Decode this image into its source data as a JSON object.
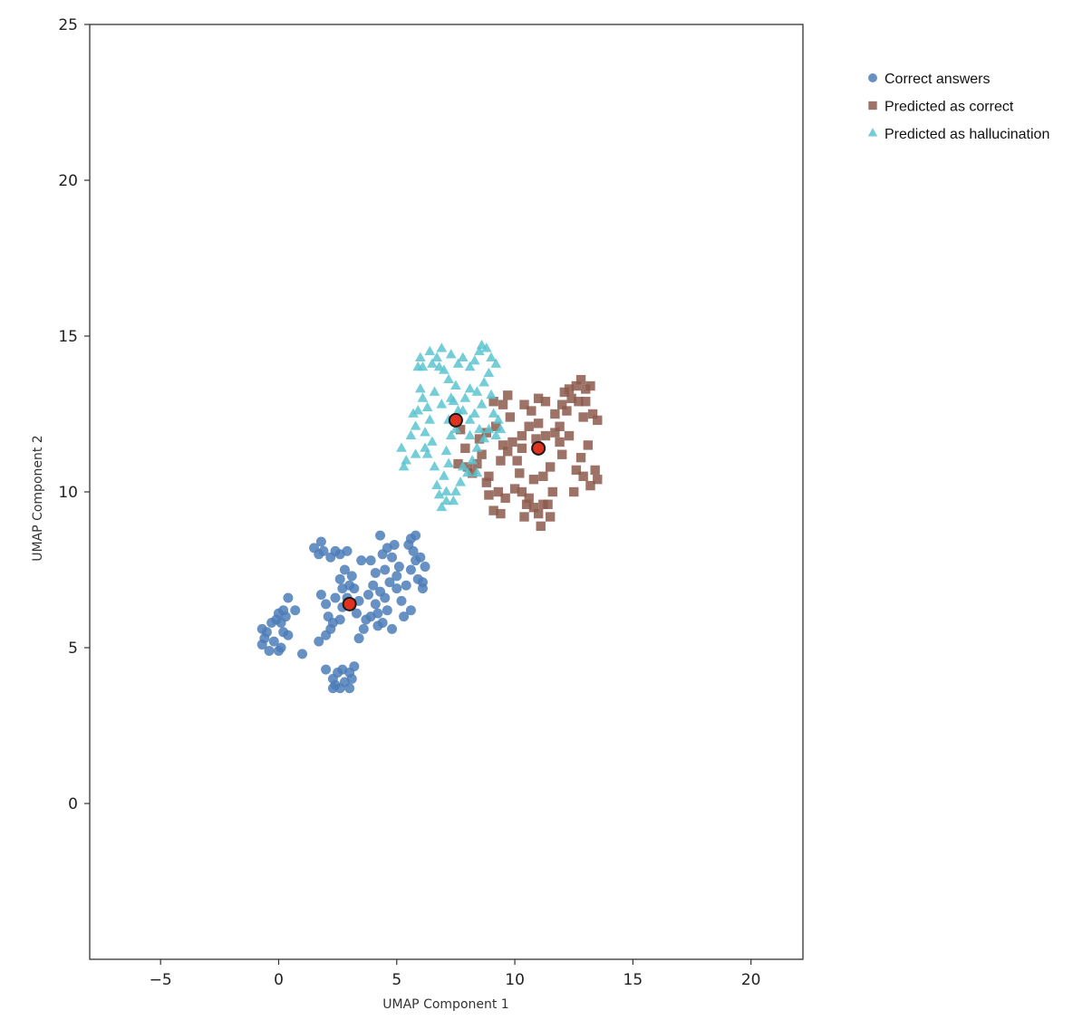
{
  "chart_data": {
    "type": "scatter",
    "title": "",
    "xlabel": "UMAP Component 1",
    "ylabel": "UMAP Component 2",
    "xlim": [
      -8,
      22.2
    ],
    "ylim": [
      -5,
      25
    ],
    "xticks": [
      -5,
      0,
      5,
      10,
      15,
      20
    ],
    "yticks": [
      0,
      5,
      10,
      15,
      20,
      25
    ],
    "xtick_labels": [
      "−5",
      "0",
      "5",
      "10",
      "15",
      "20"
    ],
    "ytick_labels": [
      "0",
      "5",
      "10",
      "15",
      "20",
      "25"
    ],
    "grid": false,
    "legend_position": "outside-top-right",
    "series": [
      {
        "name": "Correct answers",
        "marker": "circle",
        "color": "#4c7db8",
        "points": [
          [
            -0.7,
            5.6
          ],
          [
            -0.6,
            5.3
          ],
          [
            -0.5,
            5.5
          ],
          [
            -0.7,
            5.1
          ],
          [
            -0.4,
            4.9
          ],
          [
            -0.3,
            5.8
          ],
          [
            -0.2,
            5.2
          ],
          [
            -0.1,
            5.9
          ],
          [
            0.0,
            6.1
          ],
          [
            0.1,
            5.8
          ],
          [
            0.1,
            5.0
          ],
          [
            0.2,
            6.2
          ],
          [
            0.0,
            4.9
          ],
          [
            0.2,
            5.5
          ],
          [
            0.3,
            6.0
          ],
          [
            0.4,
            5.4
          ],
          [
            0.4,
            6.6
          ],
          [
            0.7,
            6.2
          ],
          [
            1.0,
            4.8
          ],
          [
            1.5,
            8.2
          ],
          [
            1.7,
            8.0
          ],
          [
            1.8,
            8.4
          ],
          [
            1.9,
            8.1
          ],
          [
            2.2,
            7.9
          ],
          [
            2.6,
            8.0
          ],
          [
            2.4,
            8.1
          ],
          [
            1.8,
            6.7
          ],
          [
            2.0,
            6.4
          ],
          [
            2.1,
            6.0
          ],
          [
            1.7,
            5.2
          ],
          [
            2.0,
            5.4
          ],
          [
            2.3,
            5.8
          ],
          [
            2.2,
            5.6
          ],
          [
            2.6,
            5.9
          ],
          [
            2.7,
            6.3
          ],
          [
            2.4,
            6.6
          ],
          [
            2.7,
            6.9
          ],
          [
            2.6,
            7.2
          ],
          [
            2.8,
            7.5
          ],
          [
            3.0,
            7.0
          ],
          [
            3.1,
            7.3
          ],
          [
            3.2,
            6.9
          ],
          [
            2.9,
            6.6
          ],
          [
            3.3,
            6.1
          ],
          [
            3.4,
            6.5
          ],
          [
            2.9,
            8.1
          ],
          [
            3.5,
            7.8
          ],
          [
            3.4,
            5.3
          ],
          [
            3.6,
            5.6
          ],
          [
            3.7,
            5.9
          ],
          [
            3.9,
            6.0
          ],
          [
            3.8,
            6.7
          ],
          [
            4.0,
            7.0
          ],
          [
            4.1,
            7.4
          ],
          [
            3.9,
            7.8
          ],
          [
            4.1,
            6.4
          ],
          [
            4.3,
            6.8
          ],
          [
            4.2,
            6.1
          ],
          [
            4.2,
            5.7
          ],
          [
            4.4,
            5.8
          ],
          [
            4.6,
            6.2
          ],
          [
            4.5,
            6.6
          ],
          [
            4.7,
            7.1
          ],
          [
            4.5,
            7.5
          ],
          [
            4.4,
            8.0
          ],
          [
            4.6,
            8.2
          ],
          [
            4.3,
            8.6
          ],
          [
            4.8,
            7.9
          ],
          [
            4.9,
            8.3
          ],
          [
            5.0,
            7.3
          ],
          [
            5.1,
            7.6
          ],
          [
            5.0,
            6.9
          ],
          [
            5.2,
            6.5
          ],
          [
            5.3,
            6.0
          ],
          [
            5.4,
            7.0
          ],
          [
            5.5,
            8.3
          ],
          [
            5.7,
            8.1
          ],
          [
            5.6,
            8.5
          ],
          [
            5.8,
            8.6
          ],
          [
            5.8,
            7.8
          ],
          [
            5.6,
            7.5
          ],
          [
            5.9,
            7.2
          ],
          [
            6.1,
            7.1
          ],
          [
            6.2,
            7.6
          ],
          [
            6.1,
            6.9
          ],
          [
            6.0,
            7.9
          ],
          [
            4.8,
            5.6
          ],
          [
            5.6,
            6.2
          ],
          [
            2.0,
            4.3
          ],
          [
            2.3,
            4.0
          ],
          [
            2.4,
            3.8
          ],
          [
            2.5,
            4.2
          ],
          [
            2.6,
            3.7
          ],
          [
            2.8,
            3.9
          ],
          [
            2.7,
            4.3
          ],
          [
            3.0,
            3.7
          ],
          [
            3.1,
            4.0
          ],
          [
            3.2,
            4.4
          ],
          [
            3.0,
            4.2
          ],
          [
            2.3,
            3.7
          ]
        ]
      },
      {
        "name": "Predicted as correct",
        "marker": "square",
        "color": "#8c5a4c",
        "points": [
          [
            7.6,
            10.9
          ],
          [
            7.9,
            11.4
          ],
          [
            7.7,
            12.0
          ],
          [
            8.0,
            10.8
          ],
          [
            8.2,
            10.6
          ],
          [
            8.4,
            10.9
          ],
          [
            8.5,
            11.7
          ],
          [
            8.8,
            11.9
          ],
          [
            8.6,
            11.2
          ],
          [
            8.9,
            10.5
          ],
          [
            8.8,
            10.3
          ],
          [
            8.9,
            9.9
          ],
          [
            9.1,
            9.4
          ],
          [
            9.3,
            10.0
          ],
          [
            9.6,
            9.8
          ],
          [
            9.4,
            11.0
          ],
          [
            9.5,
            11.5
          ],
          [
            9.7,
            11.3
          ],
          [
            9.2,
            12.1
          ],
          [
            9.1,
            12.9
          ],
          [
            9.5,
            12.8
          ],
          [
            9.7,
            13.1
          ],
          [
            9.8,
            12.4
          ],
          [
            9.9,
            11.6
          ],
          [
            10.1,
            11.0
          ],
          [
            10.3,
            11.4
          ],
          [
            10.2,
            10.6
          ],
          [
            10.0,
            10.1
          ],
          [
            10.3,
            10.0
          ],
          [
            10.5,
            9.6
          ],
          [
            10.4,
            9.2
          ],
          [
            10.8,
            9.5
          ],
          [
            10.6,
            9.8
          ],
          [
            10.8,
            10.4
          ],
          [
            11.0,
            9.3
          ],
          [
            11.2,
            9.6
          ],
          [
            11.4,
            9.6
          ],
          [
            11.1,
            8.9
          ],
          [
            11.5,
            9.2
          ],
          [
            11.6,
            10.0
          ],
          [
            11.2,
            10.5
          ],
          [
            11.5,
            10.8
          ],
          [
            11.3,
            11.8
          ],
          [
            11.7,
            12.5
          ],
          [
            11.9,
            12.1
          ],
          [
            12.0,
            12.8
          ],
          [
            12.2,
            12.6
          ],
          [
            12.4,
            13.0
          ],
          [
            12.1,
            13.2
          ],
          [
            12.6,
            13.4
          ],
          [
            12.8,
            13.6
          ],
          [
            13.0,
            13.3
          ],
          [
            12.7,
            12.9
          ],
          [
            12.9,
            12.4
          ],
          [
            13.3,
            12.5
          ],
          [
            13.5,
            12.3
          ],
          [
            13.1,
            11.5
          ],
          [
            12.8,
            11.1
          ],
          [
            12.6,
            10.7
          ],
          [
            12.9,
            10.5
          ],
          [
            13.2,
            10.2
          ],
          [
            13.4,
            10.7
          ],
          [
            13.5,
            10.4
          ],
          [
            12.5,
            10.0
          ],
          [
            12.3,
            11.8
          ],
          [
            11.9,
            11.6
          ],
          [
            12.0,
            11.2
          ],
          [
            10.4,
            12.8
          ],
          [
            10.7,
            12.6
          ],
          [
            11.0,
            13.0
          ],
          [
            11.3,
            12.9
          ],
          [
            11.0,
            12.2
          ],
          [
            10.6,
            12.1
          ],
          [
            10.9,
            11.7
          ],
          [
            11.7,
            11.9
          ],
          [
            12.3,
            13.3
          ],
          [
            13.0,
            12.9
          ],
          [
            13.2,
            13.4
          ],
          [
            10.3,
            11.8
          ],
          [
            9.4,
            9.3
          ]
        ]
      },
      {
        "name": "Predicted as hallucination",
        "marker": "triangle",
        "color": "#5cc4d0",
        "points": [
          [
            5.2,
            11.4
          ],
          [
            5.4,
            11.0
          ],
          [
            5.3,
            10.8
          ],
          [
            5.6,
            11.8
          ],
          [
            5.8,
            12.1
          ],
          [
            5.7,
            12.5
          ],
          [
            5.9,
            12.6
          ],
          [
            6.1,
            13.0
          ],
          [
            6.0,
            13.3
          ],
          [
            6.3,
            12.7
          ],
          [
            6.4,
            12.3
          ],
          [
            6.2,
            11.9
          ],
          [
            6.5,
            11.6
          ],
          [
            6.3,
            11.2
          ],
          [
            6.6,
            10.8
          ],
          [
            6.7,
            10.2
          ],
          [
            6.8,
            9.9
          ],
          [
            6.9,
            9.5
          ],
          [
            7.1,
            9.7
          ],
          [
            7.0,
            10.5
          ],
          [
            7.2,
            10.9
          ],
          [
            7.1,
            11.3
          ],
          [
            7.3,
            11.8
          ],
          [
            7.5,
            12.0
          ],
          [
            7.6,
            12.6
          ],
          [
            7.3,
            13.0
          ],
          [
            7.5,
            13.4
          ],
          [
            7.2,
            13.6
          ],
          [
            7.0,
            13.9
          ],
          [
            6.7,
            14.3
          ],
          [
            6.4,
            14.5
          ],
          [
            6.5,
            14.1
          ],
          [
            6.1,
            14.0
          ],
          [
            5.9,
            14.0
          ],
          [
            6.0,
            14.3
          ],
          [
            6.8,
            14.0
          ],
          [
            6.9,
            14.6
          ],
          [
            7.3,
            14.4
          ],
          [
            7.6,
            14.1
          ],
          [
            7.8,
            14.3
          ],
          [
            8.1,
            14.0
          ],
          [
            8.3,
            14.2
          ],
          [
            8.5,
            14.5
          ],
          [
            8.6,
            14.7
          ],
          [
            8.8,
            14.6
          ],
          [
            9.0,
            14.3
          ],
          [
            9.2,
            14.1
          ],
          [
            8.9,
            13.8
          ],
          [
            8.7,
            13.5
          ],
          [
            8.4,
            13.2
          ],
          [
            8.1,
            13.3
          ],
          [
            7.9,
            13.0
          ],
          [
            7.8,
            12.6
          ],
          [
            8.1,
            12.3
          ],
          [
            8.3,
            12.5
          ],
          [
            8.6,
            12.8
          ],
          [
            9.0,
            13.1
          ],
          [
            9.1,
            12.5
          ],
          [
            9.3,
            12.3
          ],
          [
            8.9,
            12.0
          ],
          [
            8.7,
            11.7
          ],
          [
            8.4,
            11.4
          ],
          [
            8.2,
            11.0
          ],
          [
            8.0,
            10.6
          ],
          [
            7.7,
            10.3
          ],
          [
            7.5,
            10.0
          ],
          [
            7.4,
            9.7
          ],
          [
            7.8,
            10.8
          ],
          [
            8.1,
            11.8
          ],
          [
            8.5,
            12.0
          ],
          [
            9.2,
            11.8
          ],
          [
            9.4,
            12.0
          ],
          [
            7.2,
            12.3
          ],
          [
            6.9,
            12.8
          ],
          [
            6.6,
            13.2
          ],
          [
            7.4,
            12.9
          ],
          [
            8.4,
            10.6
          ],
          [
            7.1,
            10.0
          ],
          [
            6.2,
            11.4
          ],
          [
            5.8,
            11.2
          ]
        ]
      }
    ],
    "centroids": {
      "marker": "circle",
      "color": "#e0321e",
      "edge_color": "#1a1a1a",
      "points": [
        [
          3.0,
          6.4
        ],
        [
          7.5,
          12.3
        ],
        [
          11.0,
          11.4
        ]
      ]
    }
  }
}
